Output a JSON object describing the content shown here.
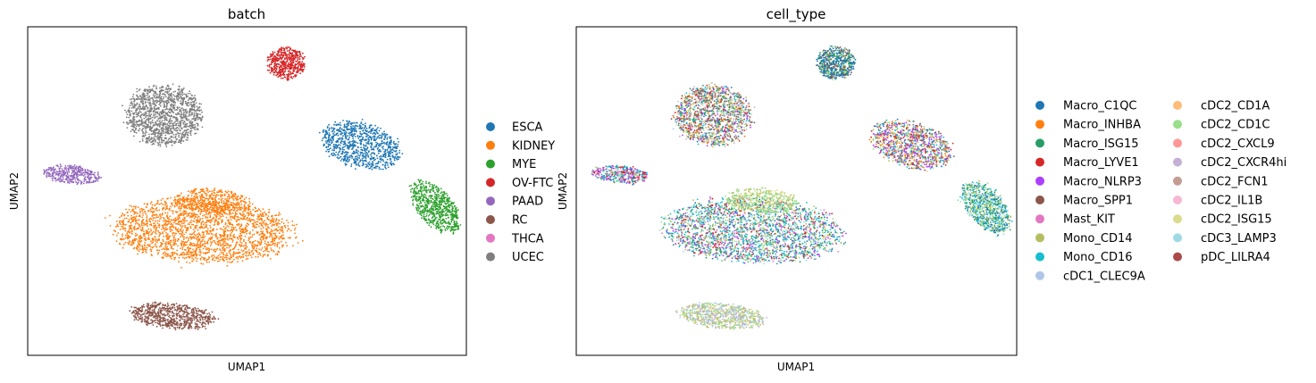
{
  "chart_data": [
    {
      "type": "scatter",
      "title": "batch",
      "xlabel": "UMAP1",
      "ylabel": "UMAP2",
      "xlim": [
        0,
        100
      ],
      "ylim": [
        0,
        100
      ],
      "grid": false,
      "legend_position": "right",
      "series": [
        {
          "name": "ESCA",
          "color": "#1f77b4",
          "clusters": [
            {
              "cx": 76,
              "cy": 64,
              "rx": 9,
              "ry": 6,
              "rot": -28,
              "n": 900
            }
          ]
        },
        {
          "name": "KIDNEY",
          "color": "#ff7f0e",
          "clusters": [
            {
              "cx": 40,
              "cy": 38,
              "rx": 19,
              "ry": 9,
              "rot": -4,
              "n": 2200
            },
            {
              "cx": 42,
              "cy": 47,
              "rx": 8,
              "ry": 3.5,
              "rot": -5,
              "n": 400
            }
          ]
        },
        {
          "name": "MYE",
          "color": "#2ca02c",
          "clusters": [
            {
              "cx": 93,
              "cy": 45,
              "rx": 8,
              "ry": 4,
              "rot": -62,
              "n": 700
            }
          ]
        },
        {
          "name": "OV-FTC",
          "color": "#d62728",
          "clusters": [
            {
              "cx": 59,
              "cy": 89,
              "rx": 4,
              "ry": 4.5,
              "rot": 0,
              "n": 500
            }
          ]
        },
        {
          "name": "PAAD",
          "color": "#9467bd",
          "clusters": [
            {
              "cx": 10,
              "cy": 55,
              "rx": 6,
              "ry": 2.5,
              "rot": -8,
              "n": 350
            }
          ]
        },
        {
          "name": "RC",
          "color": "#8c564b",
          "clusters": [
            {
              "cx": 33,
              "cy": 12,
              "rx": 9,
              "ry": 3.5,
              "rot": -8,
              "n": 700
            }
          ]
        },
        {
          "name": "THCA",
          "color": "#e377c2",
          "clusters": []
        },
        {
          "name": "UCEC",
          "color": "#7f7f7f",
          "clusters": [
            {
              "cx": 31,
              "cy": 73,
              "rx": 8,
              "ry": 8.5,
              "rot": 0,
              "n": 1300
            }
          ]
        }
      ]
    },
    {
      "type": "scatter",
      "title": "cell_type",
      "xlabel": "UMAP1",
      "ylabel": "UMAP2",
      "xlim": [
        0,
        100
      ],
      "ylim": [
        0,
        100
      ],
      "grid": false,
      "legend_position": "right",
      "series": [
        {
          "name": "Macro_C1QC",
          "color": "#1f77b4"
        },
        {
          "name": "Macro_INHBA",
          "color": "#ff7f0e"
        },
        {
          "name": "Macro_ISG15",
          "color": "#279e68"
        },
        {
          "name": "Macro_LYVE1",
          "color": "#d62728"
        },
        {
          "name": "Macro_NLRP3",
          "color": "#aa40fc"
        },
        {
          "name": "Macro_SPP1",
          "color": "#8c564b"
        },
        {
          "name": "Mast_KIT",
          "color": "#e377c2"
        },
        {
          "name": "Mono_CD14",
          "color": "#b5bd61"
        },
        {
          "name": "Mono_CD16",
          "color": "#17becf"
        },
        {
          "name": "cDC1_CLEC9A",
          "color": "#aec7e8"
        },
        {
          "name": "cDC2_CD1A",
          "color": "#ffbb78"
        },
        {
          "name": "cDC2_CD1C",
          "color": "#98df8a"
        },
        {
          "name": "cDC2_CXCL9",
          "color": "#ff9896"
        },
        {
          "name": "cDC2_CXCR4hi",
          "color": "#c5b0d5"
        },
        {
          "name": "cDC2_FCN1",
          "color": "#c49c94"
        },
        {
          "name": "cDC2_IL1B",
          "color": "#f7b6d2"
        },
        {
          "name": "cDC2_ISG15",
          "color": "#dbdb8d"
        },
        {
          "name": "cDC3_LAMP3",
          "color": "#9edae5"
        },
        {
          "name": "pDC_LILRA4",
          "color": "#ad494a"
        }
      ],
      "clusters": [
        {
          "cx": 59,
          "cy": 89,
          "rx": 4,
          "ry": 4.5,
          "rot": 0,
          "n": 600,
          "mix": [
            "Macro_C1QC",
            "Macro_C1QC",
            "Macro_C1QC",
            "Macro_SPP1",
            "Macro_ISG15",
            "cDC2_CD1C"
          ]
        },
        {
          "name_ref": "UCEC",
          "cx": 31,
          "cy": 73,
          "rx": 8,
          "ry": 8.5,
          "rot": 0,
          "n": 1500,
          "mix": [
            "Macro_NLRP3",
            "Macro_LYVE1",
            "Macro_C1QC",
            "cDC2_CD1C",
            "Mono_CD14",
            "Macro_INHBA",
            "Mono_CD16",
            "cDC2_CXCR4hi",
            "Macro_SPP1",
            "cDC1_CLEC9A",
            "cDC2_ISG15",
            "pDC_LILRA4",
            "Macro_ISG15"
          ]
        },
        {
          "cx": 76,
          "cy": 64,
          "rx": 9,
          "ry": 6,
          "rot": -28,
          "n": 1100,
          "mix": [
            "Macro_NLRP3",
            "Macro_NLRP3",
            "Macro_LYVE1",
            "Macro_INHBA",
            "cDC2_CD1C",
            "Mono_CD14",
            "Macro_SPP1",
            "cDC2_CD1A",
            "Macro_C1QC",
            "Mono_CD16"
          ]
        },
        {
          "cx": 10,
          "cy": 55,
          "rx": 6,
          "ry": 2.5,
          "rot": -8,
          "n": 400,
          "mix": [
            "Macro_C1QC",
            "Mast_KIT",
            "Macro_LYVE1",
            "Macro_NLRP3",
            "Mono_CD16",
            "cDC2_CD1C"
          ]
        },
        {
          "cx": 93,
          "cy": 45,
          "rx": 8,
          "ry": 4,
          "rot": -62,
          "n": 900,
          "mix": [
            "Mono_CD16",
            "cDC3_LAMP3",
            "Macro_ISG15",
            "Mono_CD14",
            "Macro_C1QC",
            "cDC2_CD1C"
          ]
        },
        {
          "cx": 40,
          "cy": 38,
          "rx": 19,
          "ry": 9,
          "rot": -4,
          "n": 2600,
          "mix": [
            "Mono_CD16",
            "Mono_CD16",
            "Macro_ISG15",
            "Macro_C1QC",
            "Macro_LYVE1",
            "Macro_NLRP3",
            "cDC2_CD1C",
            "cDC3_LAMP3",
            "Mast_KIT",
            "Mono_CD14"
          ]
        },
        {
          "cx": 42,
          "cy": 47,
          "rx": 8,
          "ry": 3.5,
          "rot": -5,
          "n": 450,
          "mix": [
            "cDC2_CD1C",
            "cDC2_CD1C",
            "cDC2_ISG15",
            "Mono_CD14"
          ]
        },
        {
          "cx": 33,
          "cy": 12,
          "rx": 9,
          "ry": 3.5,
          "rot": -8,
          "n": 800,
          "mix": [
            "cDC1_CLEC9A",
            "cDC2_ISG15",
            "Mono_CD14",
            "cDC2_CD1C",
            "cDC2_CXCR4hi"
          ]
        }
      ]
    }
  ]
}
